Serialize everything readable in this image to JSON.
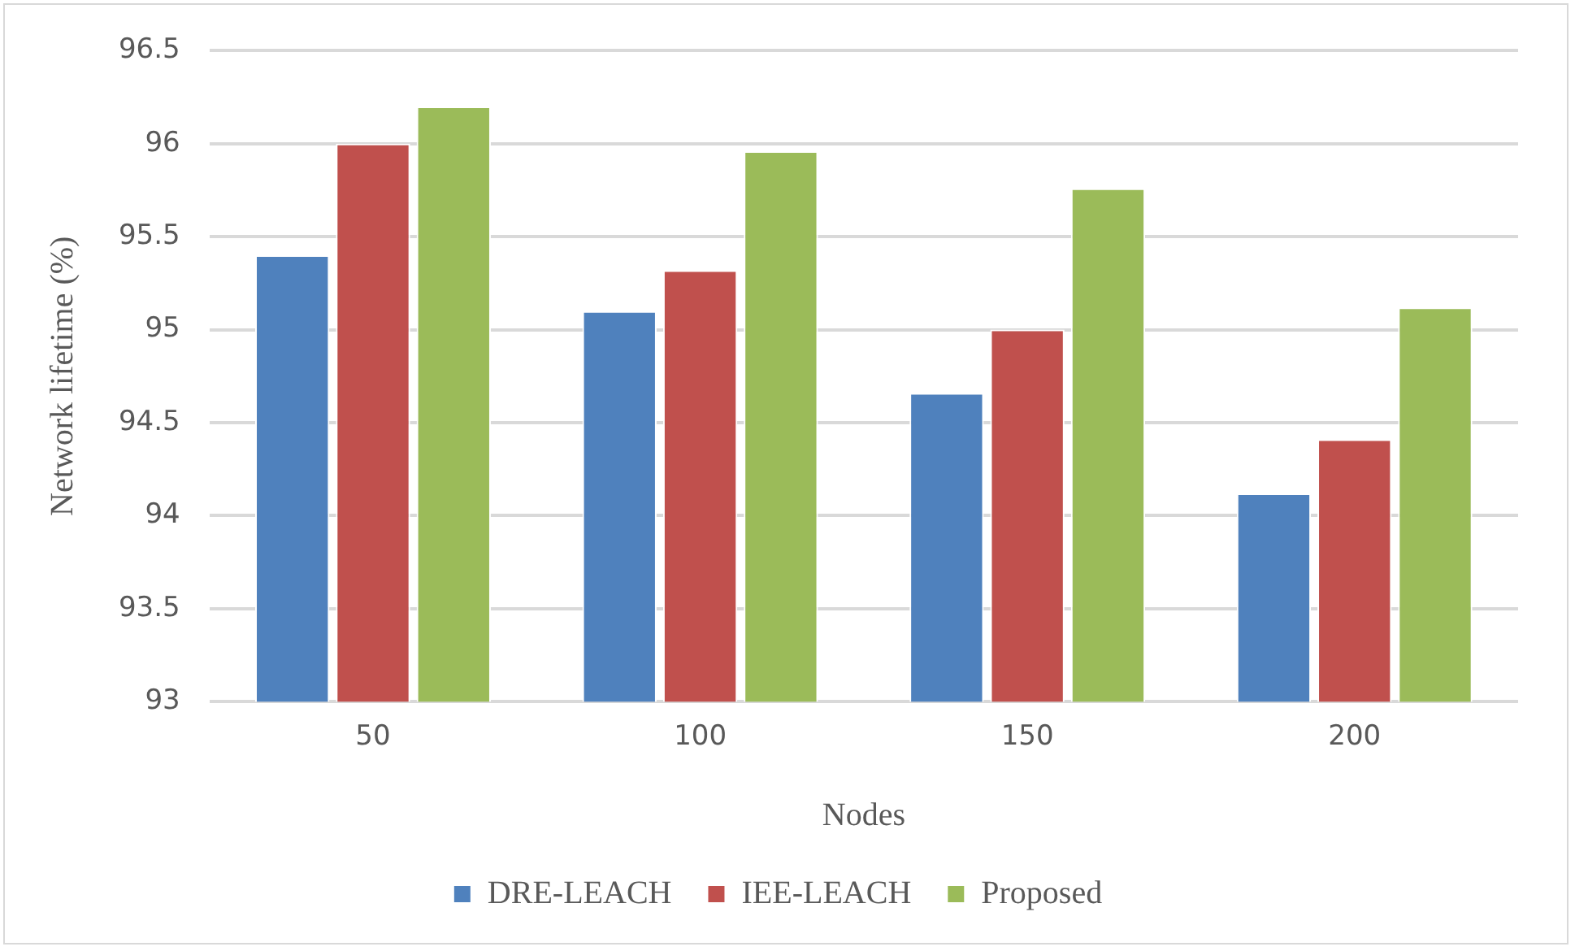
{
  "chart_data": {
    "type": "bar",
    "xlabel": "Nodes",
    "ylabel": "Network lifetime (%)",
    "categories": [
      "50",
      "100",
      "150",
      "200"
    ],
    "series": [
      {
        "name": "DRE-LEACH",
        "color": "#4f81bd",
        "values": [
          95.4,
          95.1,
          94.66,
          94.12
        ]
      },
      {
        "name": "IEE-LEACH",
        "color": "#c0504d",
        "values": [
          96.0,
          95.32,
          95.0,
          94.41
        ]
      },
      {
        "name": "Proposed",
        "color": "#9bbb59",
        "values": [
          96.2,
          95.96,
          95.76,
          95.12
        ]
      }
    ],
    "ylim": [
      93,
      96.5
    ],
    "yticks": [
      93,
      93.5,
      94,
      94.5,
      95,
      95.5,
      96,
      96.5
    ],
    "grid": "y",
    "legend": "bottom"
  }
}
